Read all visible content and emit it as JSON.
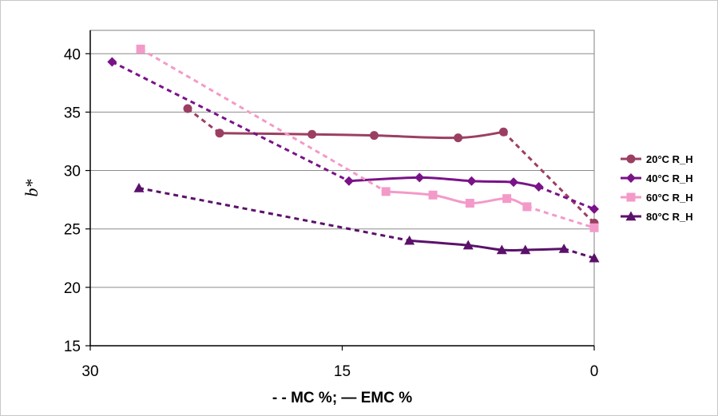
{
  "chart_data": {
    "type": "line",
    "ylabel": "b*",
    "xlabel": "- - MC %;  — EMC %",
    "xlim": [
      30,
      0
    ],
    "ylim": [
      15,
      42
    ],
    "x_ticks": [
      30,
      15,
      0
    ],
    "y_ticks": [
      15,
      20,
      25,
      30,
      35,
      40
    ],
    "grid": "horizontal",
    "legend_position": "right",
    "series": [
      {
        "name": "20°C R_H",
        "color": "#9b3f62",
        "marker": "circle",
        "mc": [
          [
            24.2,
            35.3
          ],
          [
            22.3,
            33.2
          ]
        ],
        "emc": [
          [
            22.3,
            33.2
          ],
          [
            16.8,
            33.1
          ],
          [
            13.1,
            33.0
          ],
          [
            8.1,
            32.8
          ],
          [
            5.4,
            33.3
          ]
        ],
        "mc_tail": [
          [
            5.4,
            33.3
          ],
          [
            0,
            25.5
          ]
        ]
      },
      {
        "name": "40°C R_H",
        "color": "#7a1288",
        "marker": "diamond",
        "mc": [
          [
            28.7,
            39.3
          ],
          [
            14.6,
            29.1
          ]
        ],
        "emc": [
          [
            14.6,
            29.1
          ],
          [
            10.4,
            29.4
          ],
          [
            7.3,
            29.1
          ],
          [
            4.8,
            29.0
          ],
          [
            3.3,
            28.6
          ]
        ],
        "mc_tail": [
          [
            3.3,
            28.6
          ],
          [
            0,
            26.7
          ]
        ]
      },
      {
        "name": "60°C R_H",
        "color": "#f39ac9",
        "marker": "square",
        "mc": [
          [
            27.0,
            40.4
          ],
          [
            12.4,
            28.2
          ]
        ],
        "emc": [
          [
            12.4,
            28.2
          ],
          [
            9.6,
            27.9
          ],
          [
            7.4,
            27.2
          ],
          [
            5.2,
            27.6
          ],
          [
            4.0,
            26.9
          ]
        ],
        "mc_tail": [
          [
            4.0,
            26.9
          ],
          [
            0,
            25.1
          ]
        ]
      },
      {
        "name": "80°C R_H",
        "color": "#5b116a",
        "marker": "triangle",
        "mc": [
          [
            27.1,
            28.5
          ],
          [
            11.0,
            24.0
          ]
        ],
        "emc": [
          [
            11.0,
            24.0
          ],
          [
            7.5,
            23.6
          ],
          [
            5.5,
            23.2
          ],
          [
            4.1,
            23.2
          ],
          [
            1.8,
            23.3
          ]
        ],
        "mc_tail": [
          [
            1.8,
            23.3
          ],
          [
            0,
            22.5
          ]
        ]
      }
    ]
  }
}
